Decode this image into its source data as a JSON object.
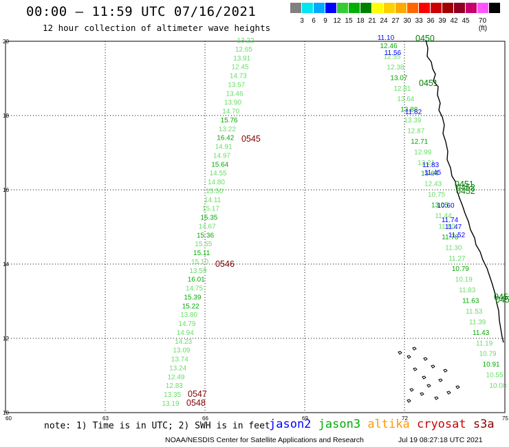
{
  "header": {
    "title": "00:00 – 11:59 UTC 07/16/2021",
    "subtitle": "12 hour collection of altimeter wave heights"
  },
  "legend": {
    "colors": [
      "#808080",
      "#00e5ee",
      "#00aaff",
      "#0000ff",
      "#33cc33",
      "#00b000",
      "#008000",
      "#ffff00",
      "#ffd000",
      "#ffaa00",
      "#ff6600",
      "#ff0000",
      "#cc0000",
      "#a00000",
      "#900020",
      "#c8006e",
      "#ff55ff",
      "#000000"
    ],
    "labels": [
      "3",
      "6",
      "9",
      "12",
      "15",
      "18",
      "21",
      "24",
      "27",
      "30",
      "33",
      "36",
      "39",
      "42",
      "45",
      "70 (ft)"
    ]
  },
  "axes": {
    "y_labels": [
      "20",
      "18",
      "16",
      "14",
      "12",
      "10"
    ],
    "x_labels": [
      "60",
      "63",
      "66",
      "69",
      "72",
      "75"
    ]
  },
  "passes": [
    {
      "id": "west",
      "color_default": "#66dd66",
      "values": [
        "13.22",
        "12.65",
        "13.91",
        "12.45",
        "14.73",
        "13.57",
        "13.46",
        "13.90",
        "14.70",
        "15.76",
        "13.22",
        "16.42",
        "14.91",
        "14.97",
        "15.64",
        "14.55",
        "14.80",
        "15.50",
        "14.11",
        "15.17",
        "15.35",
        "14.67",
        "15.36",
        "15.55",
        "15.11",
        "15.10",
        "13.59",
        "16.01",
        "14.75",
        "15.39",
        "15.22",
        "13.80",
        "14.79",
        "14.94",
        "14.23",
        "13.09",
        "13.74",
        "13.24",
        "12.49",
        "12.83",
        "13.35",
        "13.19"
      ],
      "colors": [
        "l",
        "l",
        "l",
        "l",
        "l",
        "l",
        "l",
        "l",
        "l",
        "d",
        "l",
        "d",
        "l",
        "l",
        "d",
        "l",
        "l",
        "l",
        "l",
        "l",
        "d",
        "l",
        "d",
        "l",
        "d",
        "l",
        "l",
        "d",
        "l",
        "d",
        "d",
        "l",
        "l",
        "l",
        "l",
        "l",
        "l",
        "l",
        "l",
        "l",
        "l",
        "l"
      ]
    },
    {
      "id": "east-blue",
      "values": [
        "11.10",
        "11.56",
        "11.82",
        "11.83",
        "11.45",
        "10.60",
        "11.74",
        "11.47",
        "11.52"
      ]
    },
    {
      "id": "east-green",
      "values": [
        "12.46",
        "12.55",
        "12.38",
        "13.07",
        "12.81",
        "13.64",
        "13.88",
        "13.39",
        "12.87",
        "12.71",
        "12.99",
        "13.21",
        "13.64",
        "12.43",
        "10.75",
        "13.05",
        "11.44",
        "11.80",
        "11.78",
        "11.30",
        "11.27",
        "10.79",
        "10.19",
        "11.83",
        "11.63",
        "11.53",
        "11.39",
        "11.43",
        "11.19",
        "10.79",
        "10.91",
        "10.55",
        "10.08"
      ]
    }
  ],
  "time_labels": [
    {
      "text": "0450",
      "color": "#008000"
    },
    {
      "text": "0451",
      "color": "#008000"
    },
    {
      "text": "0451",
      "color": "#008000"
    },
    {
      "text": "0452",
      "color": "#008000"
    },
    {
      "text": "0452",
      "color": "#008000"
    },
    {
      "text": "0453",
      "color": "#008000"
    },
    {
      "text": "0453",
      "color": "#008000"
    },
    {
      "text": "0545",
      "color": "#800000"
    },
    {
      "text": "0546",
      "color": "#800000"
    },
    {
      "text": "0547",
      "color": "#800000"
    },
    {
      "text": "0548",
      "color": "#800000"
    }
  ],
  "footer": {
    "note": "note: 1) Time is in UTC; 2) SWH is in feet",
    "sats": [
      {
        "name": "jason2",
        "color": "#0000ff"
      },
      {
        "name": "jason3",
        "color": "#00aa00"
      },
      {
        "name": "altika",
        "color": "#ff9900"
      },
      {
        "name": "cryosat",
        "color": "#cc0000"
      },
      {
        "name": "s3a",
        "color": "#880000"
      }
    ],
    "credit": "NOAA/NESDIS Center for Satellite Applications and Research",
    "timestamp": "Jul 19 08:27:18 UTC 2021"
  }
}
